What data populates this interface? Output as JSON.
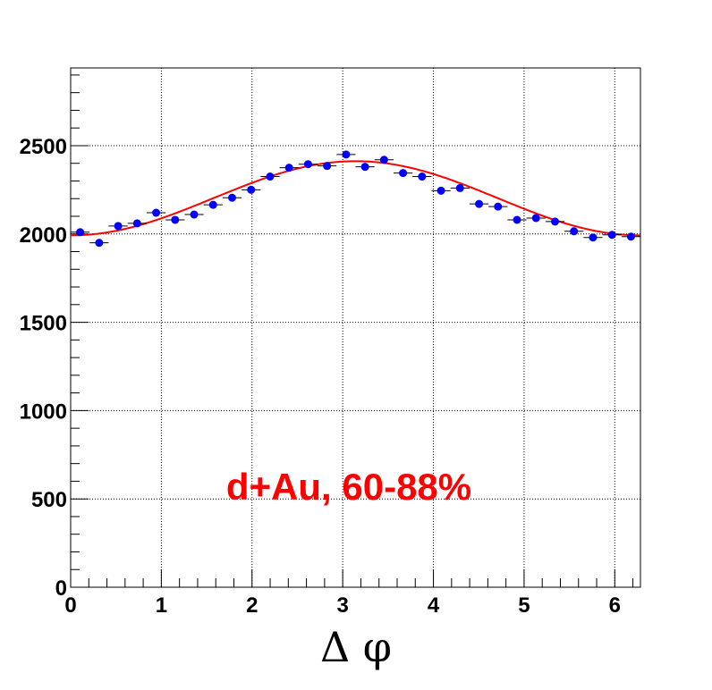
{
  "chart_data": {
    "type": "scatter",
    "xlabel": "Δ φ",
    "ylabel": "",
    "xlim": [
      0,
      6.283
    ],
    "ylim": [
      0,
      2940
    ],
    "grid": true,
    "x_ticks": [
      "0",
      "1",
      "2",
      "3",
      "4",
      "5",
      "6"
    ],
    "x_tick_values": [
      0,
      1,
      2,
      3,
      4,
      5,
      6
    ],
    "y_ticks": [
      "0",
      "500",
      "1000",
      "1500",
      "2000",
      "2500"
    ],
    "y_tick_values": [
      0,
      500,
      1000,
      1500,
      2000,
      2500
    ],
    "annotation": "d+Au, 60-88%",
    "colors": {
      "points": "#0000ff",
      "fit": "#ff0000",
      "annotation": "#ff0000"
    },
    "series": [
      {
        "type": "scatter",
        "bin_width": 0.2094,
        "x": [
          0.1047,
          0.3142,
          0.5236,
          0.733,
          0.9425,
          1.1519,
          1.3614,
          1.5708,
          1.7802,
          1.9897,
          2.1991,
          2.4086,
          2.618,
          2.8274,
          3.0369,
          3.2463,
          3.4558,
          3.6652,
          3.8746,
          4.0841,
          4.2935,
          4.503,
          4.7124,
          4.9218,
          5.1313,
          5.3407,
          5.5501,
          5.7596,
          5.969,
          6.1785
        ],
        "values": [
          2010,
          1950,
          2045,
          2060,
          2120,
          2080,
          2110,
          2165,
          2205,
          2250,
          2325,
          2375,
          2395,
          2385,
          2450,
          2380,
          2420,
          2345,
          2325,
          2245,
          2260,
          2170,
          2155,
          2080,
          2090,
          2070,
          2015,
          1980,
          1995,
          1985
        ],
        "errors": [
          9,
          9,
          9,
          9,
          9,
          9,
          9,
          9,
          9,
          9,
          9,
          9,
          9,
          9,
          9,
          9,
          9,
          9,
          9,
          9,
          9,
          9,
          9,
          9,
          9,
          9,
          9,
          9,
          9,
          9
        ]
      },
      {
        "type": "line",
        "fit_model": {
          "a0": 2202,
          "a1": -210,
          "a2": 0,
          "a3": 0
        }
      }
    ]
  }
}
